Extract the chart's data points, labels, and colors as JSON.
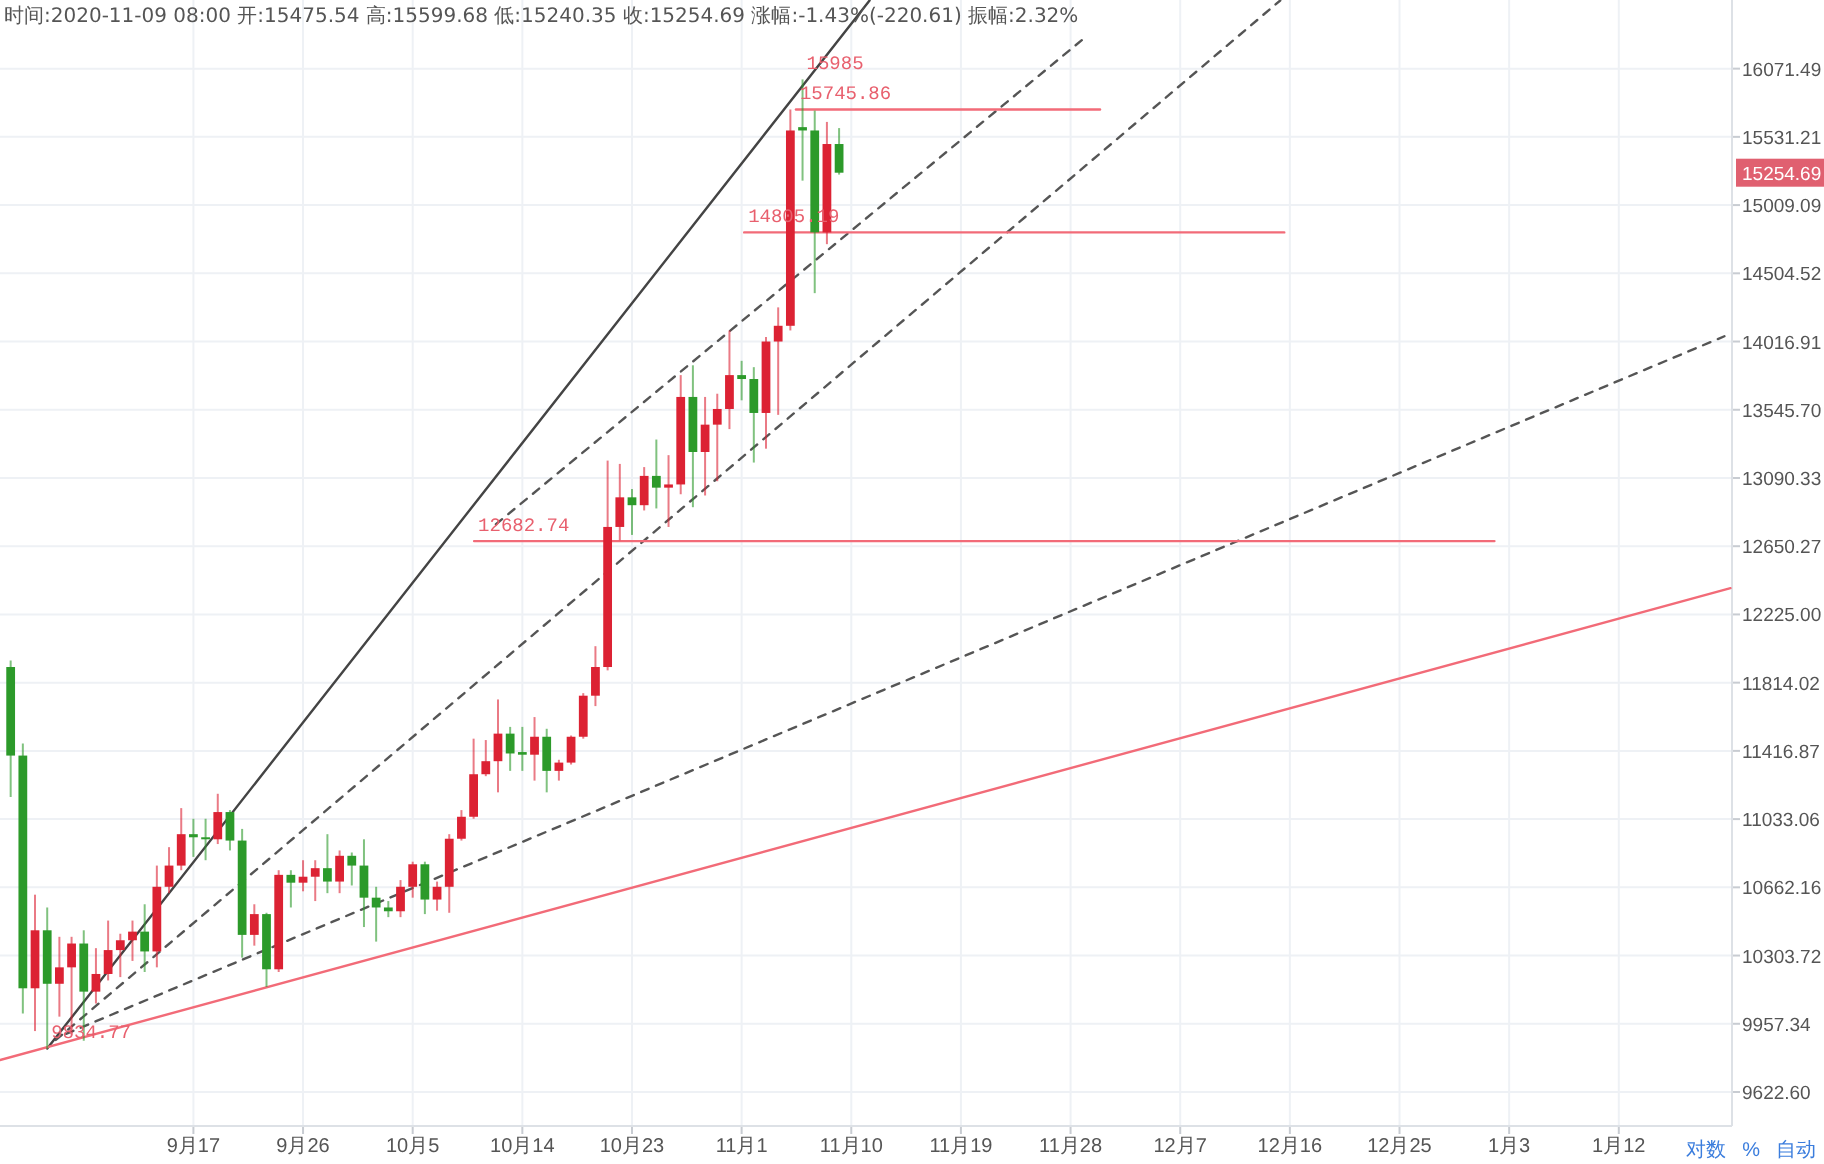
{
  "chart_data": {
    "type": "candlestick",
    "subtitle": "15254.69",
    "title": "时间:2020-11-09 08:00  开:15475.54  高:15599.68  低:15240.35  收:15254.69  涨幅:-1.43%(-220.61)  振幅:2.32%",
    "x": [
      "2020-09-02",
      "2020-09-03",
      "2020-09-04",
      "2020-09-05",
      "2020-09-06",
      "2020-09-07",
      "2020-09-08",
      "2020-09-09",
      "2020-09-10",
      "2020-09-11",
      "2020-09-12",
      "2020-09-13",
      "2020-09-14",
      "2020-09-15",
      "2020-09-16",
      "2020-09-17",
      "2020-09-18",
      "2020-09-19",
      "2020-09-20",
      "2020-09-21",
      "2020-09-22",
      "2020-09-23",
      "2020-09-24",
      "2020-09-25",
      "2020-09-26",
      "2020-09-27",
      "2020-09-28",
      "2020-09-29",
      "2020-09-30",
      "2020-10-01",
      "2020-10-02",
      "2020-10-03",
      "2020-10-04",
      "2020-10-05",
      "2020-10-06",
      "2020-10-07",
      "2020-10-08",
      "2020-10-09",
      "2020-10-10",
      "2020-10-11",
      "2020-10-12",
      "2020-10-13",
      "2020-10-14",
      "2020-10-15",
      "2020-10-16",
      "2020-10-17",
      "2020-10-18",
      "2020-10-19",
      "2020-10-20",
      "2020-10-21",
      "2020-10-22",
      "2020-10-23",
      "2020-10-24",
      "2020-10-25",
      "2020-10-26",
      "2020-10-27",
      "2020-10-28",
      "2020-10-29",
      "2020-10-30",
      "2020-10-31",
      "2020-11-01",
      "2020-11-02",
      "2020-11-03",
      "2020-11-04",
      "2020-11-05",
      "2020-11-06",
      "2020-11-07",
      "2020-11-08",
      "2020-11-09"
    ],
    "ohlc": [
      [
        11907,
        11946,
        11156,
        11390
      ],
      [
        11390,
        11459,
        10009,
        10136
      ],
      [
        10136,
        10623,
        9921,
        10435
      ],
      [
        10435,
        10555,
        9834.77,
        10159
      ],
      [
        10159,
        10401,
        9993,
        10243
      ],
      [
        10243,
        10401,
        9904,
        10366
      ],
      [
        10366,
        10435,
        9873,
        10119
      ],
      [
        10119,
        10342,
        10059,
        10209
      ],
      [
        10209,
        10486,
        10176,
        10332
      ],
      [
        10332,
        10417,
        10193,
        10383
      ],
      [
        10383,
        10486,
        10276,
        10428
      ],
      [
        10428,
        10572,
        10219,
        10325
      ],
      [
        10325,
        10779,
        10243,
        10665
      ],
      [
        10665,
        10879,
        10631,
        10779
      ],
      [
        10779,
        11094,
        10754,
        10950
      ],
      [
        10950,
        11035,
        10826,
        10933
      ],
      [
        10933,
        11035,
        10808,
        10922
      ],
      [
        10922,
        11174,
        10896,
        11072
      ],
      [
        11072,
        11083,
        10861,
        10915
      ],
      [
        10915,
        10979,
        10293,
        10411
      ],
      [
        10411,
        10572,
        10355,
        10520
      ],
      [
        10520,
        10527,
        10143,
        10233
      ],
      [
        10233,
        10754,
        10219,
        10729
      ],
      [
        10729,
        10754,
        10555,
        10687
      ],
      [
        10687,
        10808,
        10641,
        10719
      ],
      [
        10719,
        10808,
        10589,
        10765
      ],
      [
        10765,
        10950,
        10631,
        10693
      ],
      [
        10693,
        10861,
        10631,
        10832
      ],
      [
        10832,
        10850,
        10672,
        10779
      ],
      [
        10779,
        10922,
        10452,
        10607
      ],
      [
        10607,
        10665,
        10376,
        10555
      ],
      [
        10555,
        10589,
        10504,
        10535
      ],
      [
        10535,
        10701,
        10504,
        10665
      ],
      [
        10665,
        10800,
        10607,
        10786
      ],
      [
        10786,
        10800,
        10520,
        10597
      ],
      [
        10597,
        10693,
        10538,
        10665
      ],
      [
        10665,
        10950,
        10527,
        10925
      ],
      [
        10925,
        11083,
        10915,
        11046
      ],
      [
        11046,
        11487,
        11035,
        11284
      ],
      [
        11284,
        11479,
        11273,
        11358
      ],
      [
        11358,
        11715,
        11182,
        11516
      ],
      [
        11516,
        11555,
        11303,
        11402
      ],
      [
        11410,
        11555,
        11303,
        11395
      ],
      [
        11395,
        11612,
        11248,
        11498
      ],
      [
        11498,
        11544,
        11182,
        11303
      ],
      [
        11303,
        11366,
        11248,
        11350
      ],
      [
        11350,
        11505,
        11339,
        11498
      ],
      [
        11498,
        11752,
        11487,
        11737
      ],
      [
        11737,
        12032,
        11676,
        11907
      ],
      [
        11907,
        13205,
        11887,
        12773
      ],
      [
        12773,
        13183,
        12688,
        12964
      ],
      [
        12964,
        13018,
        12722,
        12913
      ],
      [
        12913,
        13162,
        12879,
        13104
      ],
      [
        13104,
        13345,
        12892,
        13027
      ],
      [
        13027,
        13241,
        12773,
        13048
      ],
      [
        13048,
        13783,
        12984,
        13633
      ],
      [
        13633,
        13851,
        12900,
        13262
      ],
      [
        13262,
        13633,
        12976,
        13445
      ],
      [
        13445,
        13655,
        13069,
        13551
      ],
      [
        13551,
        14095,
        13415,
        13783
      ],
      [
        13783,
        13882,
        13610,
        13756
      ],
      [
        13756,
        13838,
        13192,
        13524
      ],
      [
        13524,
        14049,
        13284,
        14017
      ],
      [
        14017,
        14259,
        13511,
        14128
      ],
      [
        14128,
        15745.86,
        14095,
        15581
      ],
      [
        15607,
        15985,
        15194,
        15581
      ],
      [
        15581,
        15737,
        14361,
        14805.19
      ],
      [
        14805.19,
        15648,
        14718,
        15475.54
      ],
      [
        15475.54,
        15599.68,
        15240.35,
        15254.69
      ]
    ],
    "colors": [
      "#2c9a2a",
      "#2c9a2a",
      "#dc2233",
      "#2c9a2a",
      "#dc2233",
      "#dc2233",
      "#2c9a2a",
      "#dc2233",
      "#dc2233",
      "#dc2233",
      "#dc2233",
      "#2c9a2a",
      "#dc2233",
      "#dc2233",
      "#dc2233",
      "#2c9a2a",
      "#2c9a2a",
      "#dc2233",
      "#2c9a2a",
      "#2c9a2a",
      "#dc2233",
      "#2c9a2a",
      "#dc2233",
      "#2c9a2a",
      "#dc2233",
      "#dc2233",
      "#2c9a2a",
      "#dc2233",
      "#2c9a2a",
      "#2c9a2a",
      "#2c9a2a",
      "#2c9a2a",
      "#dc2233",
      "#dc2233",
      "#2c9a2a",
      "#dc2233",
      "#dc2233",
      "#dc2233",
      "#dc2233",
      "#dc2233",
      "#dc2233",
      "#2c9a2a",
      "#2c9a2a",
      "#dc2233",
      "#2c9a2a",
      "#dc2233",
      "#dc2233",
      "#dc2233",
      "#dc2233",
      "#dc2233",
      "#dc2233",
      "#2c9a2a",
      "#dc2233",
      "#2c9a2a",
      "#dc2233",
      "#dc2233",
      "#2c9a2a",
      "#dc2233",
      "#dc2233",
      "#dc2233",
      "#2c9a2a",
      "#2c9a2a",
      "#dc2233",
      "#dc2233",
      "#dc2233",
      "#2c9a2a",
      "#2c9a2a",
      "#dc2233",
      "#2c9a2a"
    ],
    "series": [
      {
        "type": "line",
        "x": [
          "2020-09-05",
          "2020-11-11T12:00"
        ],
        "values": [
          9834.77,
          16630
        ],
        "color": "#444444",
        "line_style": "solid"
      },
      {
        "type": "line",
        "x": [
          "2020-10-11T20:00",
          "2020-11-29T07:00"
        ],
        "values": [
          12790,
          16333
        ],
        "color": "#555555",
        "line_style": "dashed"
      },
      {
        "type": "line",
        "x": [
          "2020-09-05T17:00",
          "2020-12-15T05:00"
        ],
        "values": [
          9877,
          16630
        ],
        "color": "#555555",
        "line_style": "dashed"
      },
      {
        "type": "line",
        "x": [
          "2020-09-06T13:00",
          "2021-01-20T16:00"
        ],
        "values": [
          9907,
          14054
        ],
        "color": "#555555",
        "line_style": "dashed"
      },
      {
        "type": "line",
        "x": [
          "2020-09-01T03:00",
          "2021-01-21T04:00"
        ],
        "values": [
          9778,
          12387
        ],
        "color": "#f26b78",
        "line_style": "solid"
      },
      {
        "type": "line",
        "x": [
          "2020-11-05T11:00",
          "2020-11-30T10:00"
        ],
        "values": [
          15745.86,
          15745.86
        ],
        "color": "#f26b78",
        "line_style": "solid"
      },
      {
        "type": "line",
        "x": [
          "2020-11-01T05:00",
          "2020-12-15T13:00"
        ],
        "values": [
          14805.19,
          14805.19
        ],
        "color": "#f26b78",
        "line_style": "solid"
      },
      {
        "type": "line",
        "x": [
          "2020-10-10T01:00",
          "2021-01-01T19:00"
        ],
        "values": [
          12682.74,
          12682.74
        ],
        "color": "#f26b78",
        "line_style": "solid"
      }
    ],
    "annotations": [
      {
        "text": "15745.86",
        "x": "2020-11-05T11:00",
        "y": 15745.86
      },
      {
        "text": "14805.19",
        "x": "2020-11-01T05:00",
        "y": 14805.19
      },
      {
        "text": "12682.74",
        "x": "2020-10-10T01:00",
        "y": 12682.74
      },
      {
        "text": "15985",
        "x": "2020-11-06",
        "y": 15985
      },
      {
        "text": "9834.77",
        "x": "2020-09-05",
        "y": 9834.77
      },
      "对数",
      "%",
      "自动"
    ],
    "log": true,
    "grid": true,
    "xlim": [
      "2020-09-01T03:00",
      "2021-01-21T07:00"
    ],
    "xticks": [
      {
        "value": "2020-09-17",
        "label": "9月17"
      },
      {
        "value": "2020-09-26",
        "label": "9月26"
      },
      {
        "value": "2020-10-05",
        "label": "10月5"
      },
      {
        "value": "2020-10-14",
        "label": "10月14"
      },
      {
        "value": "2020-10-23",
        "label": "10月23"
      },
      {
        "value": "2020-11-01",
        "label": "11月1"
      },
      {
        "value": "2020-11-10",
        "label": "11月10"
      },
      {
        "value": "2020-11-19",
        "label": "11月19"
      },
      {
        "value": "2020-11-28",
        "label": "11月28"
      },
      {
        "value": "2020-12-07",
        "label": "12月7"
      },
      {
        "value": "2020-12-16",
        "label": "12月16"
      },
      {
        "value": "2020-12-25",
        "label": "12月25"
      },
      {
        "value": "2021-01-03",
        "label": "1月3"
      },
      {
        "value": "2021-01-12",
        "label": "1月12"
      }
    ],
    "ylim": [
      9460,
      16634
    ],
    "yticks": [
      {
        "value": 9622.6,
        "label": "9622.60"
      },
      9957.34,
      10303.72,
      10662.16,
      11033.06,
      11416.87,
      11814.02,
      {
        "value": 12225,
        "label": "12225.00"
      },
      12650.27,
      13090.33,
      {
        "value": 13545.7,
        "label": "13545.70"
      },
      14016.91,
      14504.52,
      15009.09,
      15531.21,
      16071.49
    ]
  }
}
